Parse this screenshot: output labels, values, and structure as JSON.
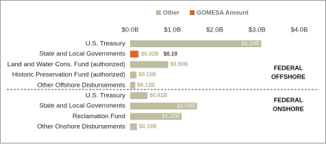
{
  "chart_data": {
    "type": "bar",
    "orientation": "horizontal",
    "stacked": true,
    "categories": [
      "U.S. Treasury",
      "State and Local Governments",
      "Land and Water Cons. Fund (authorized)",
      "Historic Preservation Fund (authorized)",
      "Other Offshore Disbursements",
      "U.S. Treasury",
      "State and Local Governments",
      "Reclamation Fund",
      "Other Onshore Disbursements"
    ],
    "series": [
      {
        "name": "GOMESA Amount",
        "color": "#e0622a",
        "values": [
          null,
          0.19,
          null,
          null,
          null,
          null,
          null,
          null,
          null
        ],
        "value_labels": [
          null,
          "$0.19",
          null,
          null,
          null,
          null,
          null,
          null,
          null
        ]
      },
      {
        "name": "Other",
        "color": "#bfbda0",
        "values": [
          3.1,
          0.02,
          0.9,
          0.15,
          0.12,
          0.41,
          1.58,
          1.22,
          0.16
        ],
        "value_labels": [
          "$3.10B",
          "$0.02B",
          "$0.90B",
          "$0.15B",
          "$0.12B",
          "$0.41B",
          "$1.58B",
          "$1.22B",
          "$0.16B"
        ]
      }
    ],
    "legend_order": [
      1,
      0
    ],
    "xlim": [
      0,
      4
    ],
    "xticks": [
      {
        "value": 0,
        "label": "$0.0B"
      },
      {
        "value": 1,
        "label": "$1.0B"
      },
      {
        "value": 2,
        "label": "$2.0B"
      },
      {
        "value": 3,
        "label": "$3.0B"
      },
      {
        "value": 4,
        "label": "$4.0B"
      }
    ],
    "group_labels": [
      [
        "FEDERAL",
        "OFFSHORE"
      ],
      [
        "FEDERAL",
        "ONSHORE"
      ]
    ]
  }
}
